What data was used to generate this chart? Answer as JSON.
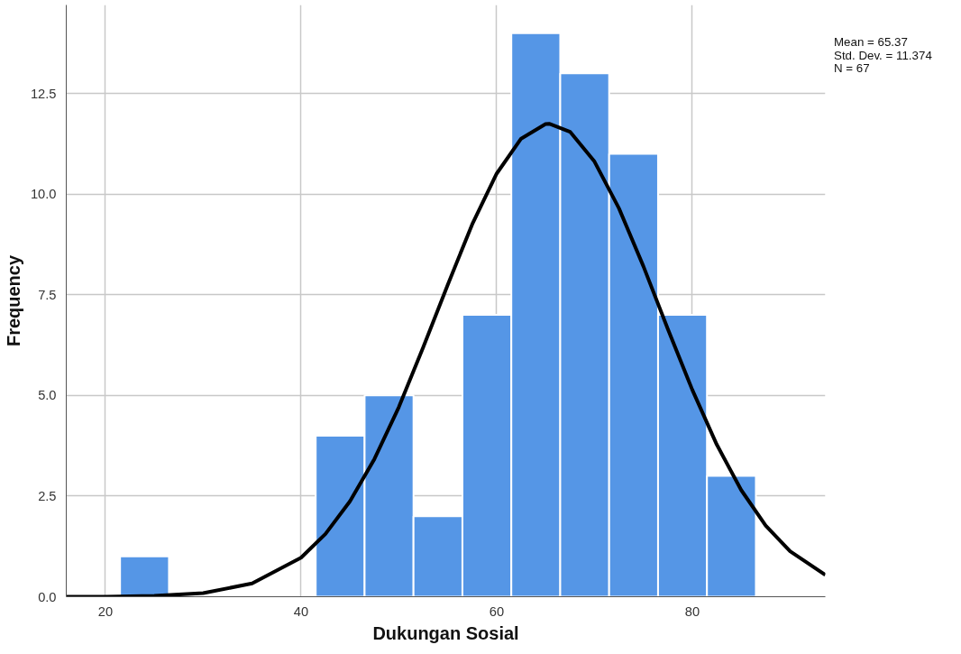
{
  "chart_data": {
    "type": "histogram",
    "xlabel": "Dukungan Sosial",
    "ylabel": "Frequency",
    "bins": [
      21.5,
      26.5,
      31.5,
      36.5,
      41.5,
      46.5,
      51.5,
      56.5,
      61.5,
      66.5,
      71.5,
      76.5,
      81.5,
      86.5
    ],
    "values": [
      1,
      0,
      0,
      0,
      4,
      5,
      2,
      7,
      14,
      13,
      11,
      7,
      3
    ],
    "color": "#5596e6",
    "series": [
      {
        "type": "line",
        "color": "#000000",
        "x": [
          16,
          20,
          25,
          30,
          35,
          40,
          42.5,
          45,
          47.5,
          50,
          52.5,
          55,
          57.5,
          60,
          62.5,
          65,
          65.37,
          67.5,
          70,
          72.5,
          75,
          77.5,
          80,
          82.5,
          85,
          87.5,
          90,
          93.6
        ],
        "values": [
          0,
          0,
          0.02,
          0.09,
          0.33,
          0.97,
          1.56,
          2.37,
          3.42,
          4.71,
          6.2,
          7.75,
          9.25,
          10.51,
          11.38,
          11.74,
          11.75,
          11.55,
          10.81,
          9.65,
          8.21,
          6.65,
          5.14,
          3.78,
          2.65,
          1.77,
          1.13,
          0.54
        ]
      }
    ],
    "xlim": [
      16,
      93.6
    ],
    "ylim": [
      0,
      14.7
    ],
    "xticks": [
      20,
      40,
      60,
      80
    ],
    "yticks": [
      {
        "value": 0,
        "label": "0.0"
      },
      {
        "value": 2.5,
        "label": "2.5"
      },
      {
        "value": 5,
        "label": "5.0"
      },
      {
        "value": 7.5,
        "label": "7.5"
      },
      {
        "value": 10,
        "label": "10.0"
      },
      {
        "value": 12.5,
        "label": "12.5"
      }
    ],
    "grid": true,
    "annotations": [
      "Mean = 65.37",
      "Std. Dev. = 11.374",
      "N = 67"
    ]
  }
}
